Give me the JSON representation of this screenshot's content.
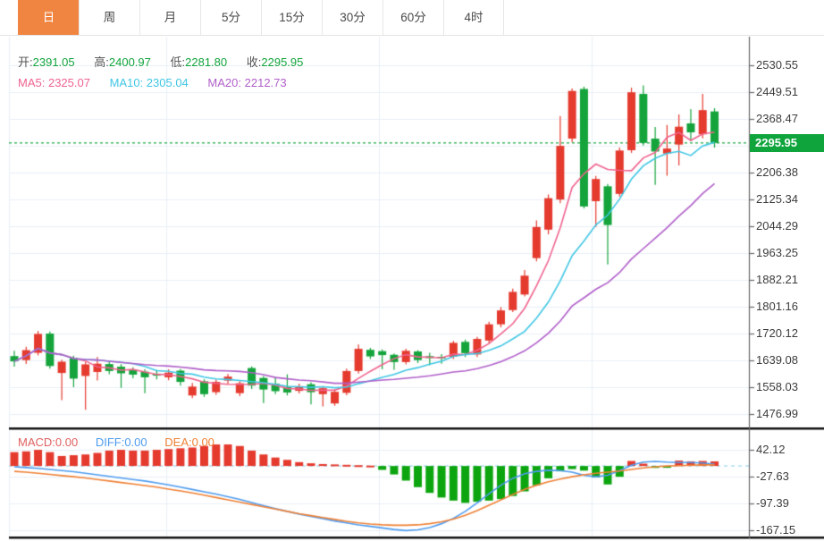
{
  "tabs": [
    {
      "label": "日",
      "active": true
    },
    {
      "label": "周",
      "active": false
    },
    {
      "label": "月",
      "active": false
    },
    {
      "label": "5分",
      "active": false
    },
    {
      "label": "15分",
      "active": false
    },
    {
      "label": "30分",
      "active": false
    },
    {
      "label": "60分",
      "active": false
    },
    {
      "label": "4时",
      "active": false
    }
  ],
  "info": {
    "open_label": "开:",
    "open": "2391.05",
    "high_label": "高:",
    "high": "2400.97",
    "low_label": "低:",
    "low": "2281.80",
    "close_label": "收:",
    "close": "2295.95"
  },
  "ma": {
    "ma5_label": "MA5:",
    "ma5": "2325.07",
    "ma10_label": "MA10:",
    "ma10": "2305.04",
    "ma20_label": "MA20:",
    "ma20": "2212.73"
  },
  "macd_info": {
    "macd_label": "MACD:",
    "macd": "0.00",
    "diff_label": "DIFF:",
    "diff": "0.00",
    "dea_label": "DEA:",
    "dea": "0.00"
  },
  "price_badge": "2295.95",
  "colors": {
    "accent_orange": "#f08542",
    "candle_up": "#e53a2e",
    "candle_down": "#14a43b",
    "badge_green": "#0fa53c",
    "price_dash_green": "#12a43c",
    "ma5": "#f0638e",
    "ma10": "#3fc6e4",
    "ma20": "#b05fc9",
    "diff_line": "#4d9bef",
    "dea_line": "#ef8135",
    "hist_up": "#e53a2e",
    "hist_down": "#0da50f",
    "grid": "#e9eff7",
    "axis_line": "#666666",
    "tick_text": "#3c3c3c",
    "zero_dash": "#aeddf2",
    "separator": "#111111"
  },
  "chart_data": {
    "type": "candlestick",
    "convention": "red-up-green-down",
    "price_pane": {
      "y_ticks": [
        "2530.55",
        "2449.51",
        "2368.47",
        "2206.38",
        "2125.34",
        "2044.29",
        "1963.25",
        "1882.21",
        "1801.16",
        "1720.12",
        "1639.08",
        "1558.03",
        "1476.99"
      ],
      "ylim": [
        1476.99,
        2530.55
      ],
      "tick_interval": 81.04,
      "current_price": 2295.95,
      "ma_periods": [
        5,
        10,
        20
      ],
      "candles_ohlc": [
        [
          1652,
          1668,
          1620,
          1636
        ],
        [
          1640,
          1680,
          1628,
          1670
        ],
        [
          1662,
          1728,
          1654,
          1719
        ],
        [
          1720,
          1726,
          1614,
          1622
        ],
        [
          1601,
          1641,
          1519,
          1635
        ],
        [
          1647,
          1653,
          1558,
          1584
        ],
        [
          1592,
          1634,
          1490,
          1627
        ],
        [
          1604,
          1649,
          1578,
          1629
        ],
        [
          1628,
          1636,
          1597,
          1607
        ],
        [
          1620,
          1628,
          1556,
          1600
        ],
        [
          1612,
          1618,
          1585,
          1596
        ],
        [
          1605,
          1612,
          1540,
          1588
        ],
        [
          1598,
          1610,
          1582,
          1593
        ],
        [
          1588,
          1612,
          1579,
          1602
        ],
        [
          1608,
          1613,
          1563,
          1574
        ],
        [
          1533,
          1571,
          1525,
          1560
        ],
        [
          1576,
          1582,
          1529,
          1537
        ],
        [
          1543,
          1581,
          1535,
          1574
        ],
        [
          1578,
          1598,
          1569,
          1590
        ],
        [
          1540,
          1576,
          1531,
          1570
        ],
        [
          1616,
          1621,
          1553,
          1563
        ],
        [
          1586,
          1592,
          1510,
          1551
        ],
        [
          1569,
          1589,
          1537,
          1546
        ],
        [
          1559,
          1597,
          1533,
          1542
        ],
        [
          1547,
          1569,
          1539,
          1561
        ],
        [
          1567,
          1573,
          1506,
          1543
        ],
        [
          1537,
          1561,
          1500,
          1555
        ],
        [
          1509,
          1551,
          1502,
          1544
        ],
        [
          1541,
          1614,
          1534,
          1607
        ],
        [
          1607,
          1687,
          1599,
          1674
        ],
        [
          1671,
          1677,
          1643,
          1651
        ],
        [
          1667,
          1672,
          1612,
          1655
        ],
        [
          1656,
          1660,
          1611,
          1634
        ],
        [
          1634,
          1674,
          1627,
          1668
        ],
        [
          1666,
          1670,
          1631,
          1640
        ],
        [
          1652,
          1662,
          1624,
          1646
        ],
        [
          1650,
          1658,
          1629,
          1645
        ],
        [
          1650,
          1698,
          1643,
          1692
        ],
        [
          1695,
          1702,
          1649,
          1661
        ],
        [
          1657,
          1710,
          1649,
          1704
        ],
        [
          1699,
          1756,
          1691,
          1748
        ],
        [
          1748,
          1800,
          1739,
          1790
        ],
        [
          1791,
          1856,
          1785,
          1846
        ],
        [
          1838,
          1912,
          1832,
          1895
        ],
        [
          1948,
          2062,
          1938,
          2042
        ],
        [
          2034,
          2140,
          2020,
          2129
        ],
        [
          2125,
          2377,
          2114,
          2287
        ],
        [
          2309,
          2460,
          2298,
          2453
        ],
        [
          2459,
          2466,
          2098,
          2104
        ],
        [
          2120,
          2196,
          2042,
          2187
        ],
        [
          2165,
          2172,
          1929,
          2048
        ],
        [
          2142,
          2282,
          2134,
          2273
        ],
        [
          2274,
          2463,
          2266,
          2449
        ],
        [
          2444,
          2470,
          2288,
          2296
        ],
        [
          2309,
          2344,
          2169,
          2270
        ],
        [
          2264,
          2350,
          2197,
          2279
        ],
        [
          2291,
          2382,
          2228,
          2345
        ],
        [
          2355,
          2398,
          2301,
          2328
        ],
        [
          2322,
          2444,
          2310,
          2395
        ],
        [
          2391.05,
          2400.97,
          2281.8,
          2295.95
        ]
      ]
    },
    "macd_pane": {
      "y_ticks": [
        "42.12",
        "-27.63",
        "-97.39",
        "-167.15"
      ],
      "tick_interval": 69.75,
      "histogram": [
        36,
        38,
        42,
        36,
        26,
        28,
        30,
        34,
        40,
        42,
        40,
        40,
        42,
        44,
        46,
        48,
        52,
        56,
        56,
        52,
        40,
        30,
        22,
        16,
        10,
        7,
        5,
        4,
        3,
        2,
        1,
        -10,
        -22,
        -38,
        -55,
        -70,
        -82,
        -90,
        -96,
        -93,
        -90,
        -86,
        -78,
        -66,
        -50,
        -32,
        -14,
        -8,
        -12,
        -30,
        -48,
        -28,
        13,
        6,
        -5,
        -4,
        14,
        12,
        13,
        12
      ],
      "diff": [
        -2,
        -4,
        -6,
        -9,
        -12,
        -15,
        -19,
        -23,
        -27,
        -31,
        -35,
        -39,
        -44,
        -49,
        -55,
        -61,
        -67,
        -73,
        -80,
        -87,
        -95,
        -103,
        -111,
        -118,
        -125,
        -131,
        -137,
        -143,
        -148,
        -153,
        -157,
        -161,
        -165,
        -168,
        -166,
        -160,
        -150,
        -136,
        -118,
        -96,
        -72,
        -50,
        -32,
        -20,
        -14,
        -11,
        -12,
        -16,
        -24,
        -28,
        -24,
        -12,
        2,
        10,
        12,
        10,
        9,
        9,
        8,
        5
      ],
      "dea": [
        -14,
        -16,
        -19,
        -22,
        -25,
        -28,
        -31,
        -35,
        -39,
        -43,
        -47,
        -51,
        -55,
        -60,
        -65,
        -70,
        -76,
        -82,
        -88,
        -94,
        -100,
        -106,
        -112,
        -118,
        -124,
        -129,
        -134,
        -139,
        -144,
        -148,
        -151,
        -153,
        -154,
        -154,
        -153,
        -150,
        -145,
        -138,
        -128,
        -116,
        -102,
        -88,
        -74,
        -61,
        -50,
        -41,
        -34,
        -28,
        -23,
        -19,
        -16,
        -13,
        -9,
        -5,
        -2,
        0,
        1,
        2,
        3,
        3
      ]
    }
  }
}
